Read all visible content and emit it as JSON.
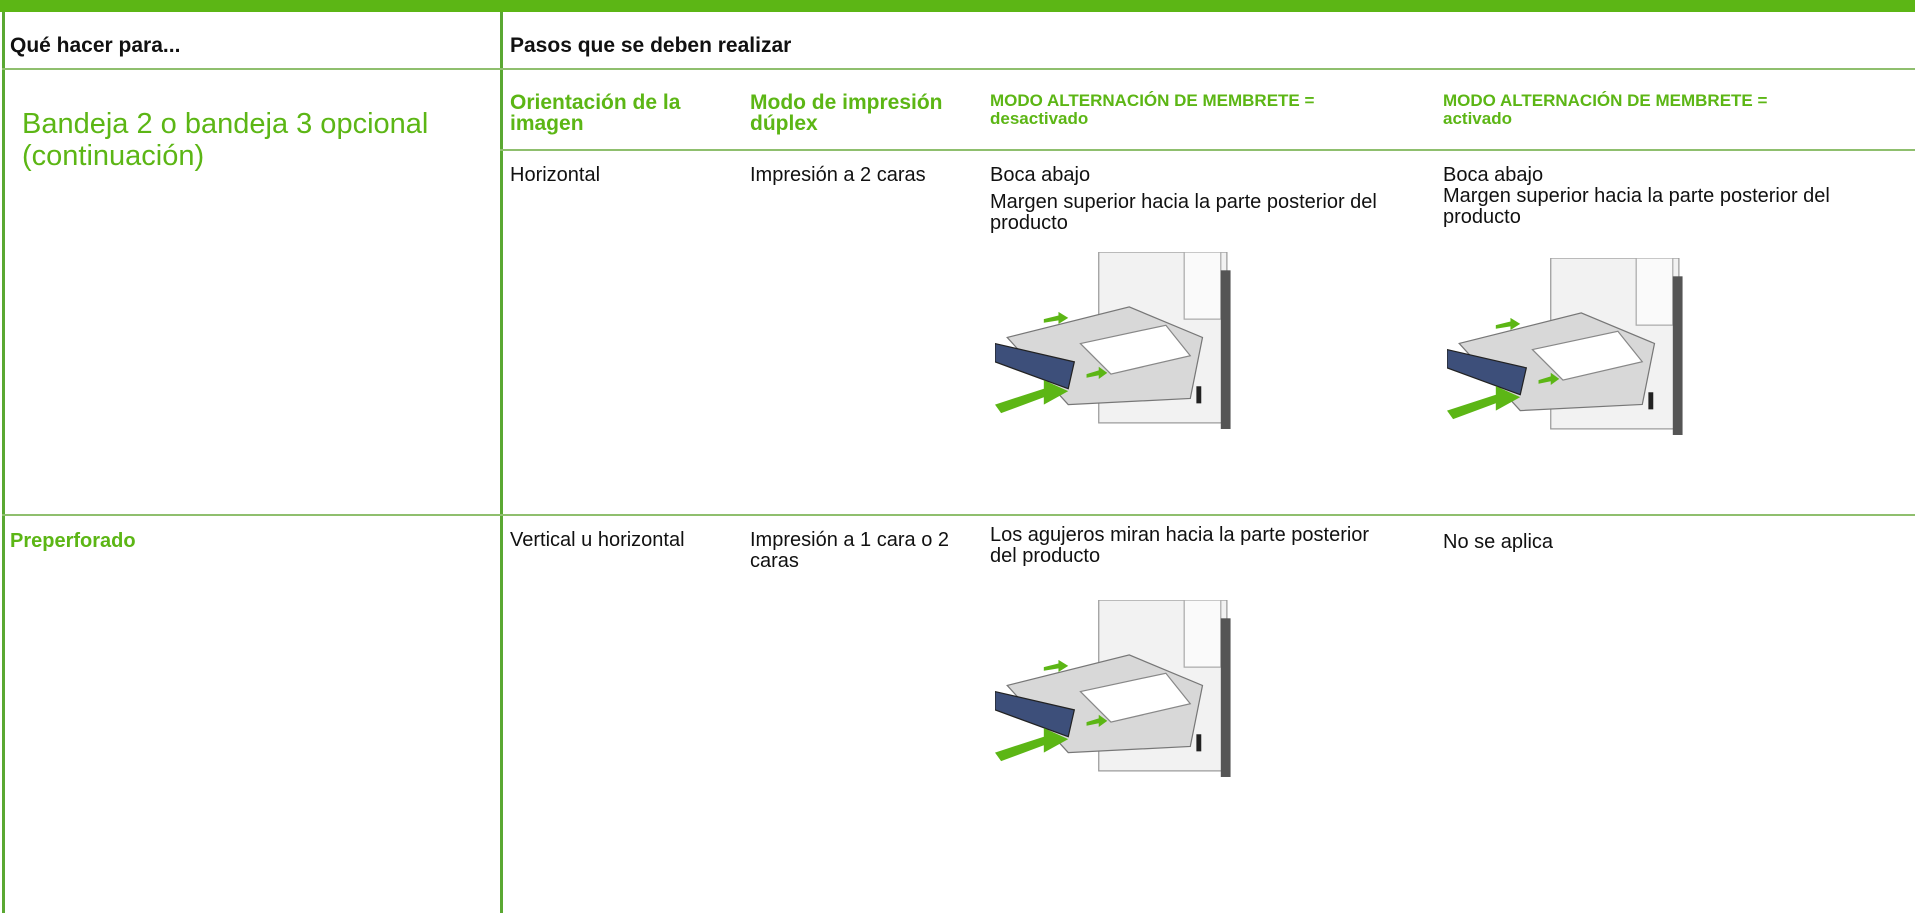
{
  "header": {
    "col1": "Qué hacer para...",
    "col2": "Pasos que se deben realizar"
  },
  "section": {
    "title": "Bandeja 2 o bandeja 3 opcional (continuación)",
    "columns": [
      "Orientación de la imagen",
      "Modo de impresión dúplex",
      "MODO ALTERNACIÓN DE MEMBRETE = desactivado",
      "MODO ALTERNACIÓN DE MEMBRETE = activado"
    ]
  },
  "rows": [
    {
      "orientation": "Horizontal",
      "duplex": "Impresión a 2 caras",
      "off": [
        "Boca abajo",
        "Margen superior hacia la parte posterior del producto"
      ],
      "on": [
        "Boca abajo",
        "Margen superior hacia la parte posterior del producto"
      ]
    },
    {
      "label": "Preperforado",
      "orientation": "Vertical u horizontal",
      "duplex": "Impresión a 1 cara o 2 caras",
      "off": [
        "Los agujeros miran hacia la parte posterior del producto"
      ],
      "on": [
        "No se aplica"
      ]
    }
  ]
}
